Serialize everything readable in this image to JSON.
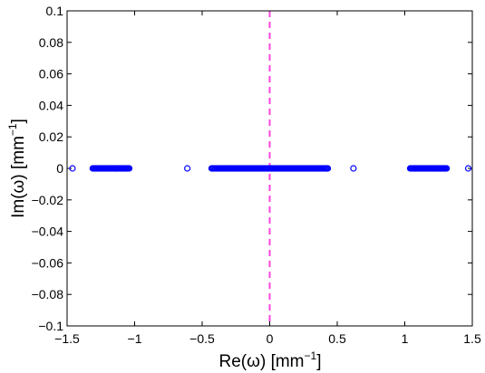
{
  "chart_data": {
    "type": "scatter",
    "title": "",
    "xlabel": {
      "main": "Re(ω) [mm",
      "sup": "−1",
      "tail": "]"
    },
    "ylabel": {
      "main": "Im(ω) [mm",
      "sup": "−1",
      "tail": "]"
    },
    "xlim": [
      -1.5,
      1.5
    ],
    "ylim": [
      -0.1,
      0.1
    ],
    "x_ticks": [
      -1.5,
      -1,
      -0.5,
      0,
      0.5,
      1,
      1.5
    ],
    "x_tick_labels": [
      "−1.5",
      "−1",
      "−0.5",
      "0",
      "0.5",
      "1",
      "1.5"
    ],
    "y_ticks": [
      0.1,
      0.08,
      0.06,
      0.04,
      0.02,
      0,
      -0.02,
      -0.04,
      -0.06,
      -0.08,
      -0.1
    ],
    "y_tick_labels": [
      "0.1",
      "0.08",
      "0.06",
      "0.04",
      "0.02",
      "0",
      "−0.02",
      "−0.04",
      "−0.06",
      "−0.08",
      "−0.1"
    ],
    "grid": false,
    "marker": "open-circle",
    "marker_color": "#0000ff",
    "reference_line": {
      "orientation": "vertical",
      "x": 0,
      "style": "dashed",
      "color": "#ff44dd"
    },
    "series": [
      {
        "points": {
          "isolated_x": [
            -1.46,
            -0.61,
            0.62,
            1.47
          ],
          "clusters": [
            {
              "x_range": [
                -1.31,
                -1.04
              ],
              "count": 45
            },
            {
              "x_range": [
                -0.43,
                0.43
              ],
              "count": 120
            },
            {
              "x_range": [
                1.04,
                1.31
              ],
              "count": 45
            }
          ],
          "y": 0
        }
      }
    ]
  }
}
